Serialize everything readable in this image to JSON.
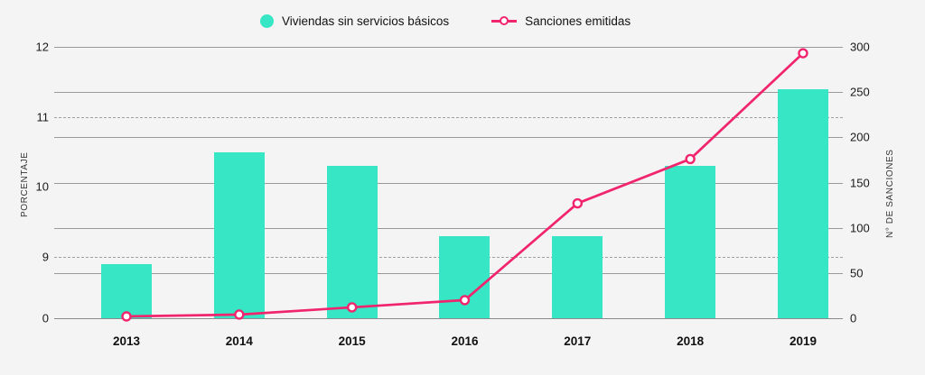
{
  "chart_data": {
    "type": "bar",
    "subtype": "combo-bar-line-dual-axis",
    "categories": [
      "2013",
      "2014",
      "2015",
      "2016",
      "2017",
      "2018",
      "2019"
    ],
    "series": [
      {
        "name": "Viviendas sin servicios básicos",
        "type": "bar",
        "axis": "left",
        "unit": "%",
        "values": [
          8.9,
          10.5,
          10.3,
          9.3,
          9.3,
          10.3,
          11.4
        ],
        "color": "#36e6c5"
      },
      {
        "name": "Sanciones emitidas",
        "type": "line",
        "axis": "right",
        "marker": "open-circle",
        "values": [
          2,
          4,
          12,
          20,
          127,
          176,
          293
        ],
        "color": "#f1246e"
      }
    ],
    "left_axis": {
      "title": "PORCENTAJE",
      "ticks": [
        12,
        11,
        10,
        9,
        0
      ],
      "broken_between": [
        0,
        9
      ],
      "dotted_gridline_values": [
        11,
        9
      ]
    },
    "right_axis": {
      "title": "N° DE SANCIONES",
      "ticks": [
        300,
        250,
        200,
        150,
        100,
        50,
        0
      ],
      "lim": [
        0,
        300
      ],
      "solid_gridline_values": [
        300,
        250,
        200,
        150,
        100,
        50,
        0
      ]
    },
    "grid": "on",
    "legend_position": "top-center",
    "background": "#f4f4f4",
    "gridline_color": "#9a9a9a",
    "text_color": "#1a1a1a"
  }
}
